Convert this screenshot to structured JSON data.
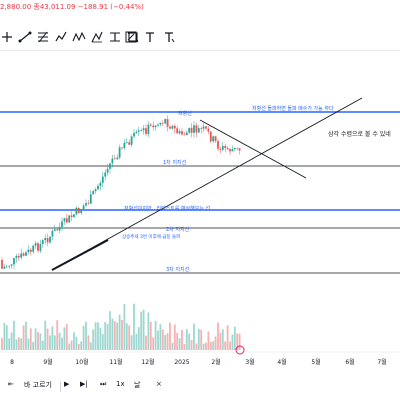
{
  "header": {
    "quote_text": "2,880.00  종43,011.09  −188.91 (−0.44%)"
  },
  "toolbar": {
    "tools": [
      {
        "icon": "crosshair-icon"
      },
      {
        "icon": "trend-line-icon"
      },
      {
        "icon": "fib-retracement-icon"
      },
      {
        "icon": "brush-icon"
      },
      {
        "icon": "pattern-icon"
      },
      {
        "icon": "path-icon"
      },
      {
        "icon": "projection-icon"
      },
      {
        "icon": "measure-icon"
      },
      {
        "icon": "rectangle-icon"
      },
      {
        "icon": "text-icon"
      },
      {
        "icon": "text-annotation-icon"
      }
    ]
  },
  "chart": {
    "colors": {
      "up": "#26a69a",
      "down": "#ef5350",
      "support_line": "#131722",
      "resistance_line": "#2962ff",
      "label_blue": "#2962ff"
    },
    "annotations": {
      "resistance_label": "저항선",
      "breakout_note": "저항선 돌파하면 돌파 매수가 가능 하다",
      "triangle_note": "삼각 수렴으로 볼 수 있네",
      "support1_label": "1차 지지선",
      "resistance_support_note": "저항선이지만.. 리테스트를 예상해보는 선..",
      "support2_label": "2차 지지선",
      "uptrend_note": "상승추세 3번 이후에 급등 돌파",
      "support3_label": "3차 지지선"
    },
    "x_axis_labels": [
      "8",
      "9월",
      "10월",
      "11월",
      "12월",
      "2025",
      "2월",
      "3월",
      "4월",
      "5월",
      "6월",
      "7월"
    ]
  },
  "bottombar": {
    "range_label": "바 고르기",
    "interval_label": "1x",
    "interval2_label": "날"
  }
}
